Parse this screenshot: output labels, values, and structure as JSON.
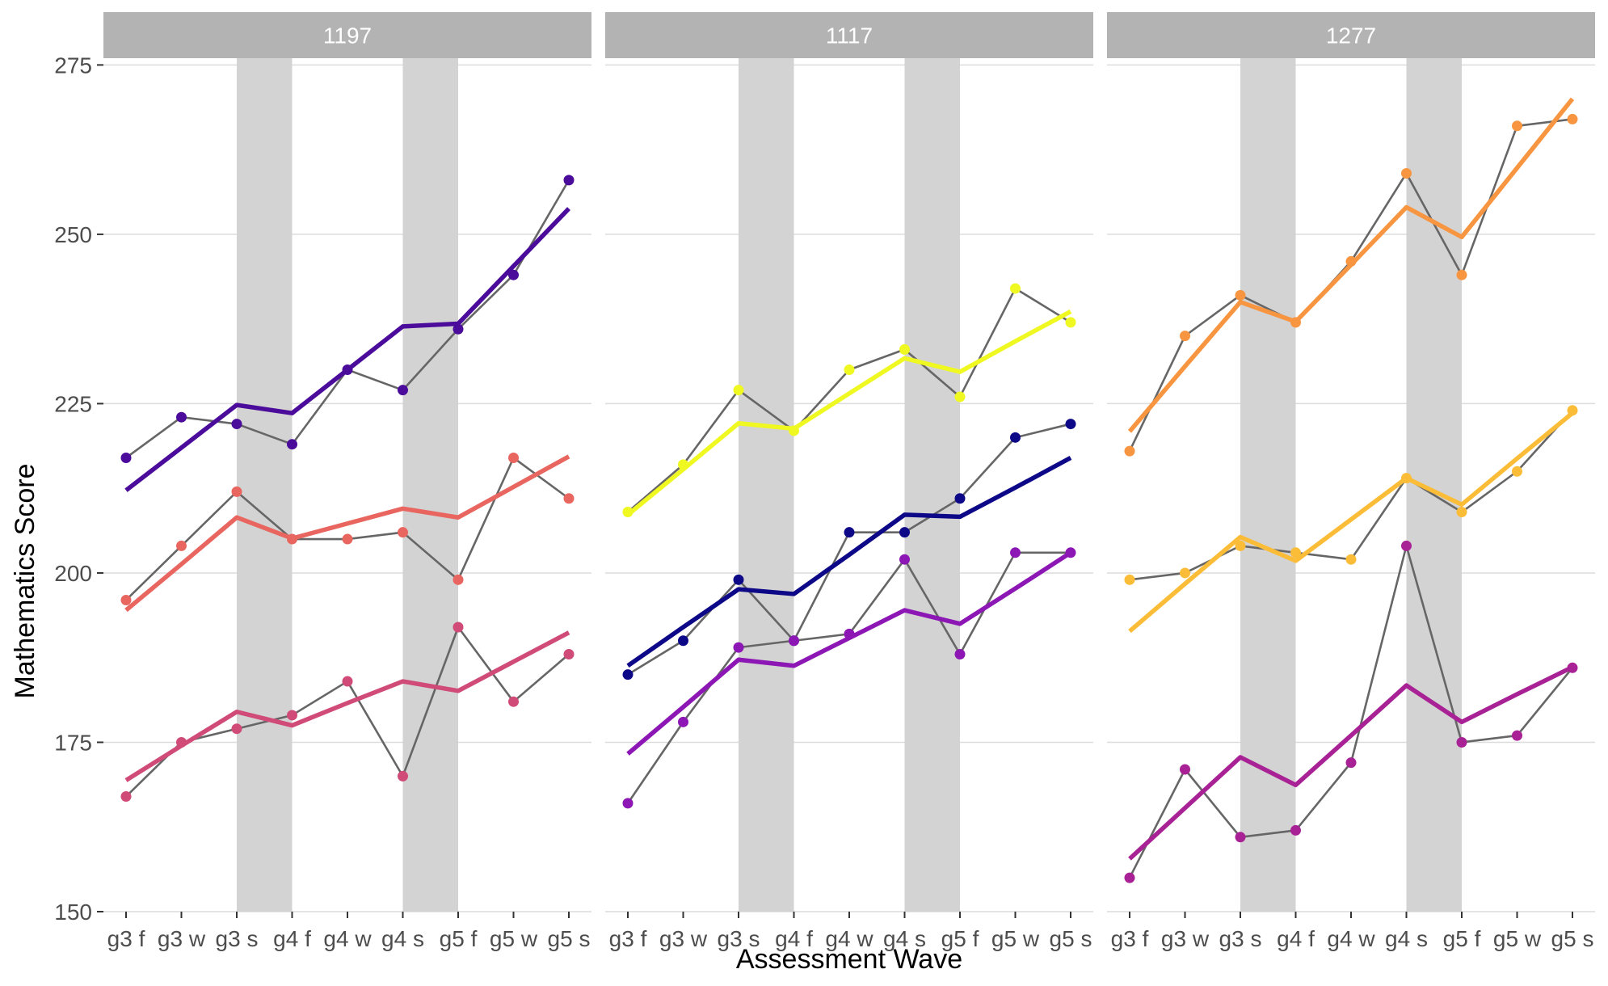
{
  "chart_data": {
    "type": "line",
    "xlabel": "Assessment Wave",
    "ylabel": "Mathematics Score",
    "ylim": [
      150,
      276
    ],
    "y_ticks": [
      150,
      175,
      200,
      225,
      250,
      275
    ],
    "x": [
      "g3 f",
      "g3 w",
      "g3 s",
      "g4 f",
      "g4 w",
      "g4 s",
      "g5 f",
      "g5 w",
      "g5 s"
    ],
    "shaded_intervals": [
      [
        "g3 s",
        "g4 f"
      ],
      [
        "g4 s",
        "g5 f"
      ]
    ],
    "grid": true,
    "panels": [
      {
        "title": "1197",
        "series": [
          {
            "color": "#4b0c9b",
            "observed": [
              217,
              223,
              222,
              219,
              230,
              227,
              236,
              244,
              258
            ],
            "fitted": [
              212.2,
              218.5,
              224.8,
              223.6,
              230.0,
              236.4,
              236.8,
              245.3,
              253.8
            ]
          },
          {
            "color": "#e8665f",
            "observed": [
              196,
              204,
              212,
              205,
              205,
              206,
              199,
              217,
              211
            ],
            "fitted": [
              194.5,
              201.3,
              208.2,
              205.1,
              207.3,
              209.5,
              208.2,
              212.7,
              217.2
            ]
          },
          {
            "color": "#d04b78",
            "observed": [
              167,
              175,
              177,
              179,
              184,
              170,
              192,
              181,
              188
            ],
            "fitted": [
              169.4,
              174.5,
              179.5,
              177.5,
              180.8,
              184.0,
              182.6,
              186.9,
              191.2
            ]
          }
        ]
      },
      {
        "title": "1117",
        "series": [
          {
            "color": "#eff821",
            "observed": [
              209,
              216,
              227,
              221,
              230,
              233,
              226,
              242,
              237
            ],
            "fitted": [
              208.6,
              215.3,
              222.1,
              221.3,
              226.5,
              231.7,
              229.7,
              234.2,
              238.6
            ]
          },
          {
            "color": "#0d0887",
            "observed": [
              185,
              190,
              199,
              190,
              206,
              206,
              211,
              220,
              222
            ],
            "fitted": [
              186.3,
              192.0,
              197.6,
              196.9,
              202.7,
              208.6,
              208.3,
              212.6,
              217.0
            ]
          },
          {
            "color": "#8c17b4",
            "observed": [
              166,
              178,
              189,
              190,
              191,
              202,
              188,
              203,
              203
            ],
            "fitted": [
              173.3,
              180.2,
              187.2,
              186.3,
              190.4,
              194.5,
              192.5,
              197.7,
              203.0
            ]
          }
        ]
      },
      {
        "title": "1277",
        "series": [
          {
            "color": "#f89540",
            "observed": [
              218,
              235,
              241,
              237,
              246,
              259,
              244,
              266,
              267
            ],
            "fitted": [
              220.9,
              230.5,
              240.0,
              237.1,
              245.5,
              254.0,
              249.6,
              259.8,
              270.0
            ]
          },
          {
            "color": "#fbbd38",
            "observed": [
              199,
              200,
              204,
              203,
              202,
              214,
              209,
              215,
              224
            ],
            "fitted": [
              191.4,
              198.4,
              205.3,
              201.8,
              207.9,
              214.0,
              210.1,
              216.9,
              223.6
            ]
          },
          {
            "color": "#a82296",
            "observed": [
              155,
              171,
              161,
              162,
              172,
              204,
              175,
              176,
              186
            ],
            "fitted": [
              157.8,
              165.3,
              172.8,
              168.7,
              176.0,
              183.4,
              178.0,
              182.1,
              186.1
            ]
          }
        ]
      }
    ]
  }
}
